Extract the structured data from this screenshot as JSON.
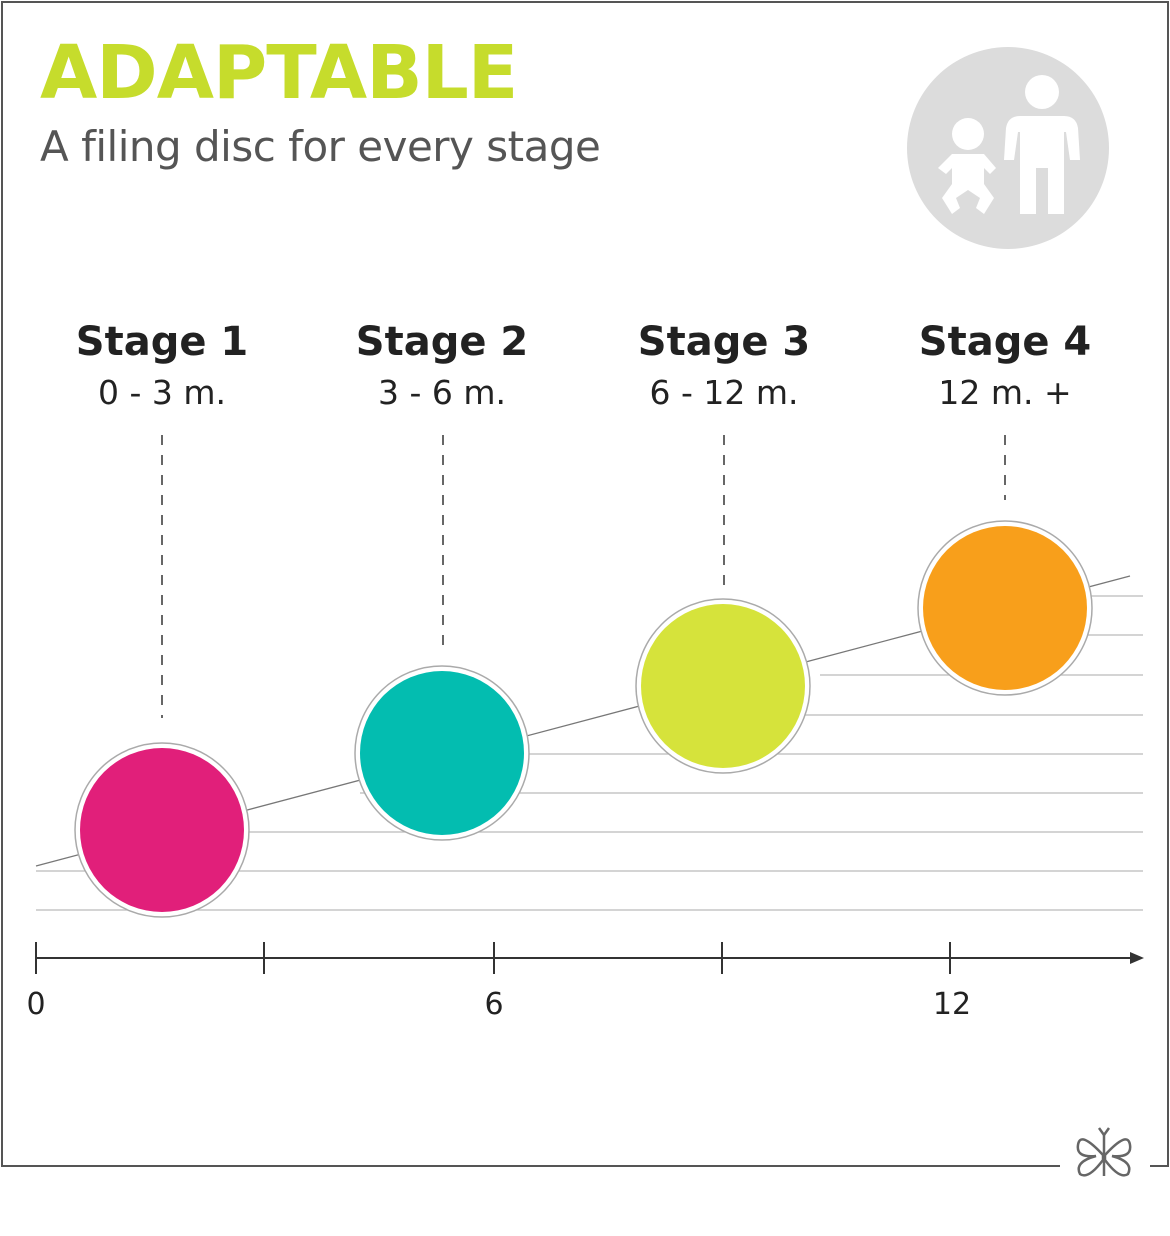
{
  "title": "ADAPTABLE",
  "subtitle": "A filing disc for every stage",
  "icon": "baby-and-adult-icon",
  "logo": "butterfly-logo",
  "colors": {
    "title": "#c6dc2c",
    "stage1": "#e11f7a",
    "stage2": "#03bdb0",
    "stage3": "#d6e33b",
    "stage4": "#f89f1b",
    "icon_bg": "#dcdcdc"
  },
  "stages": [
    {
      "name": "Stage 1",
      "range": "0 - 3 m."
    },
    {
      "name": "Stage 2",
      "range": "3 - 6 m."
    },
    {
      "name": "Stage 3",
      "range": "6 - 12 m."
    },
    {
      "name": "Stage 4",
      "range": "12 m. +"
    }
  ],
  "axis": {
    "tick_labels": [
      "0",
      "6",
      "12"
    ]
  }
}
